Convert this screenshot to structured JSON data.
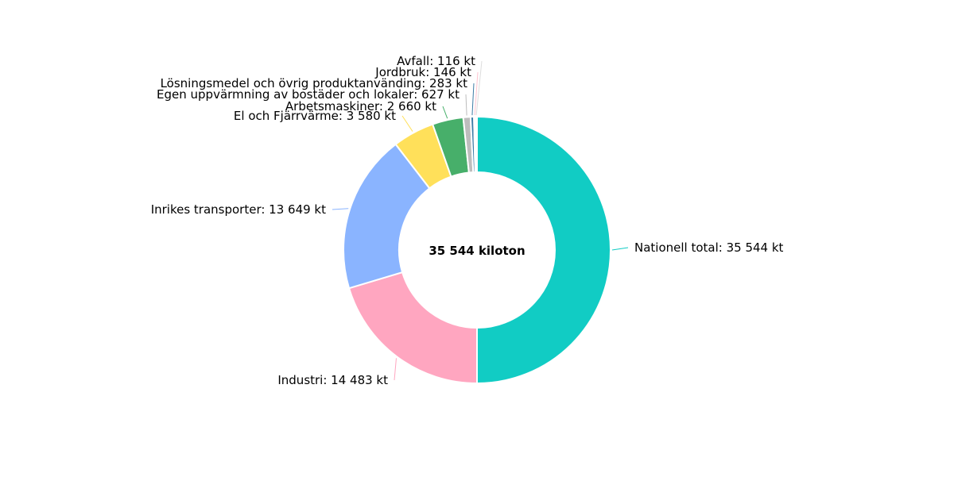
{
  "chart_data": {
    "type": "pie",
    "variant": "donut",
    "center_label": "35 544 kiloton",
    "unit": "kt",
    "categories": [
      "Nationell total",
      "Industri",
      "Inrikes transporter",
      "El och Fjärrvärme",
      "Arbetsmaskiner",
      "Egen uppvärmning av bostäder och lokaler",
      "Lösningsmedel och övrig produktanvänding",
      "Jordbruk",
      "Avfall"
    ],
    "values": [
      35544,
      14483,
      13649,
      3580,
      2660,
      627,
      283,
      146,
      116
    ],
    "labels": [
      "Nationell total: 35 544 kt",
      "Industri: 14 483 kt",
      "Inrikes transporter: 13 649 kt",
      "El och Fjärrvärme: 3 580 kt",
      "Arbetsmaskiner: 2 660 kt",
      "Egen uppvärmning av bostäder och lokaler: 627 kt",
      "Lösningsmedel och övrig produktanvänding: 283 kt",
      "Jordbruk: 146 kt",
      "Avfall: 116 kt"
    ],
    "colors": [
      "#11CCC4",
      "#FFA6C0",
      "#8AB4FF",
      "#FFE05A",
      "#47AF6A",
      "#BDBDBD",
      "#3D7CA6",
      "#FFC4D0",
      "#FFFFFF"
    ]
  }
}
